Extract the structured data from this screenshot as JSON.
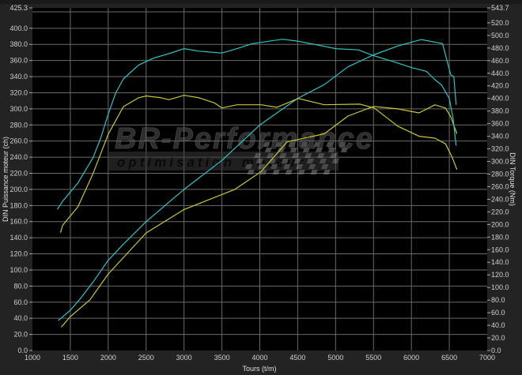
{
  "chart_data": {
    "type": "line",
    "xlabel": "Tours (t/m)",
    "ylabel": "DIN Puissance moteur (ch)",
    "y2label": "DIN Torque (Nm)",
    "xlim": [
      1000,
      7000
    ],
    "ylim": [
      0,
      425.3
    ],
    "y2lim": [
      0,
      543.7
    ],
    "grid": true,
    "x_ticks": [
      "1000",
      "1500",
      "2000",
      "2500",
      "3000",
      "3500",
      "4000",
      "4500",
      "5000",
      "5500",
      "6000",
      "6500",
      "7000"
    ],
    "y_ticks": [
      "0.0",
      "20.0",
      "40.0",
      "60.0",
      "80.0",
      "100.0",
      "120.0",
      "140.0",
      "160.0",
      "180.0",
      "200.0",
      "220.0",
      "240.0",
      "260.0",
      "280.0",
      "300.0",
      "320.0",
      "340.0",
      "360.0",
      "380.0",
      "400.0",
      "425.3"
    ],
    "y2_ticks": [
      "0.0",
      "20.0",
      "40.0",
      "60.0",
      "80.0",
      "100.0",
      "120.0",
      "140.0",
      "160.0",
      "180.0",
      "200.0",
      "220.0",
      "240.0",
      "260.0",
      "280.0",
      "300.0",
      "320.0",
      "340.0",
      "360.0",
      "380.0",
      "400.0",
      "420.0",
      "440.0",
      "460.0",
      "480.0",
      "500.0",
      "520.0",
      "543.7"
    ],
    "series": [
      {
        "axis": "left",
        "color": "#2ec4c4",
        "x": [
          1340,
          1500,
          1620,
          1800,
          2000,
          2200,
          2500,
          3000,
          3500,
          4000,
          4500,
          4850,
          5160,
          5500,
          5820,
          6130,
          6410,
          6520,
          6560,
          6590
        ],
        "y": [
          37,
          50,
          63,
          85,
          112,
          132,
          160,
          200,
          236,
          280,
          313,
          330,
          352,
          367,
          378,
          386,
          381,
          342,
          340,
          305
        ]
      },
      {
        "axis": "left",
        "color": "#c8c832",
        "x": [
          1380,
          1500,
          1760,
          2000,
          2500,
          3000,
          3670,
          4016,
          4360,
          4850,
          5164,
          5500,
          5820,
          6100,
          6310,
          6450,
          6520,
          6600
        ],
        "y": [
          29,
          42,
          63,
          95,
          146,
          175,
          200,
          222,
          259,
          269,
          291,
          303,
          300,
          295,
          305,
          301,
          290,
          269
        ]
      },
      {
        "axis": "right",
        "color": "#2ec4c4",
        "x": [
          1330,
          1400,
          1600,
          1800,
          1900,
          2000,
          2100,
          2200,
          2400,
          2600,
          2800,
          3000,
          3200,
          3500,
          3700,
          3900,
          4300,
          4500,
          4800,
          5000,
          5300,
          5500,
          5800,
          6000,
          6200,
          6300,
          6400,
          6500,
          6550,
          6590
        ],
        "y": [
          224,
          237,
          266,
          306,
          337,
          375,
          409,
          431,
          453,
          464,
          471,
          479,
          475,
          472,
          479,
          487,
          494,
          491,
          484,
          479,
          477,
          468,
          457,
          449,
          443,
          431,
          421,
          400,
          368,
          325
        ]
      },
      {
        "axis": "right",
        "color": "#c8c832",
        "x": [
          1370,
          1400,
          1600,
          1800,
          2000,
          2200,
          2400,
          2500,
          2700,
          2800,
          3000,
          3200,
          3400,
          3500,
          3700,
          4016,
          4225,
          4506,
          4850,
          5320,
          5508,
          5820,
          6100,
          6310,
          6450,
          6540,
          6600
        ],
        "y": [
          187,
          199,
          228,
          281,
          343,
          387,
          401,
          404,
          401,
          398,
          405,
          401,
          393,
          385,
          390,
          390,
          386,
          400,
          390,
          391,
          385,
          356,
          340,
          337,
          328,
          306,
          287
        ]
      }
    ]
  },
  "watermark": {
    "brand": "BR-Performance",
    "tagline": "optimisation moteur"
  }
}
